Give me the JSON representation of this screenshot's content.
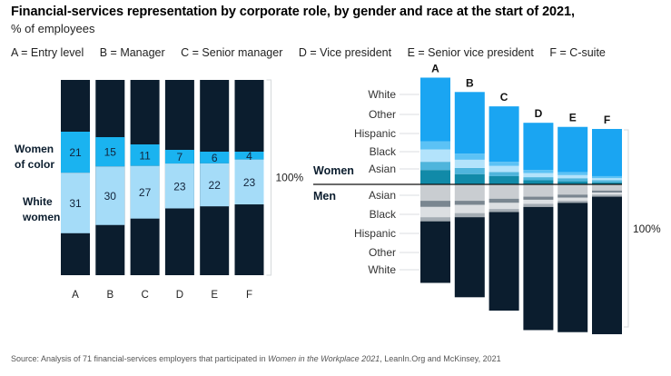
{
  "header": {
    "title": "Financial-services representation by corporate role, by gender and race at the start of 2021,",
    "subtitle": "% of employees"
  },
  "legend": [
    {
      "key": "A",
      "text": "A = Entry level"
    },
    {
      "key": "B",
      "text": "B = Manager"
    },
    {
      "key": "C",
      "text": "C = Senior manager"
    },
    {
      "key": "D",
      "text": "D = Vice president"
    },
    {
      "key": "E",
      "text": "E = Senior vice president"
    },
    {
      "key": "F",
      "text": "F = C-suite"
    }
  ],
  "source": {
    "prefix": "Source: Analysis of 71 financial-services employers that participated in ",
    "italic": "Women in the Workplace 2021",
    "suffix": ", LeanIn.Org and McKinsey, 2021"
  },
  "colors": {
    "dark": "#0b1d2e",
    "woc": "#1ab3f0",
    "white_women": "#a5dcf8",
    "w_white": "#1aa5f2",
    "w_other": "#5cc2f5",
    "w_hispanic": "#b3e3fb",
    "w_black": "#4fb5dc",
    "w_asian": "#118aa8",
    "m_asian": "#c9cdd1",
    "m_black": "#7a8690",
    "m_hispanic": "#dcdfe2",
    "m_other": "#a4acb3"
  },
  "chart_data": [
    {
      "type": "bar",
      "stacked": true,
      "categories": [
        "A",
        "B",
        "C",
        "D",
        "E",
        "F"
      ],
      "series": [
        {
          "name": "Women of color",
          "values": [
            21,
            15,
            11,
            7,
            6,
            4
          ]
        },
        {
          "name": "White women",
          "values": [
            31,
            30,
            27,
            23,
            22,
            23
          ]
        }
      ],
      "total_label": "100%",
      "series_labels": {
        "woc": [
          "Women",
          "of color"
        ],
        "white_women": [
          "White",
          "women"
        ]
      }
    },
    {
      "type": "bar",
      "stacked": true,
      "categories": [
        "A",
        "B",
        "C",
        "D",
        "E",
        "F"
      ],
      "group_labels": [
        "Women",
        "Men"
      ],
      "women_series": [
        "White",
        "Other",
        "Hispanic",
        "Black",
        "Asian"
      ],
      "men_series": [
        "Asian",
        "Black",
        "Hispanic",
        "Other",
        "White"
      ],
      "women": {
        "White": [
          31,
          30,
          27,
          23,
          22,
          23
        ],
        "Other": [
          4,
          3,
          2,
          1.5,
          1.5,
          1
        ],
        "Hispanic": [
          6,
          4,
          3,
          2,
          1.5,
          1
        ],
        "Black": [
          4,
          3,
          2,
          1.5,
          1.5,
          1
        ],
        "Asian": [
          7,
          5,
          4,
          2,
          1.5,
          1
        ]
      },
      "men": {
        "Asian": [
          8,
          8,
          7,
          6,
          5,
          3
        ],
        "Black": [
          3,
          2,
          2,
          1.5,
          1.5,
          1
        ],
        "Hispanic": [
          5,
          4,
          3,
          2,
          1.5,
          1
        ],
        "Other": [
          2,
          2,
          1.5,
          1.5,
          1,
          1
        ],
        "White": [
          30,
          39,
          48,
          60,
          63,
          67
        ]
      },
      "total_label": "100%"
    }
  ]
}
